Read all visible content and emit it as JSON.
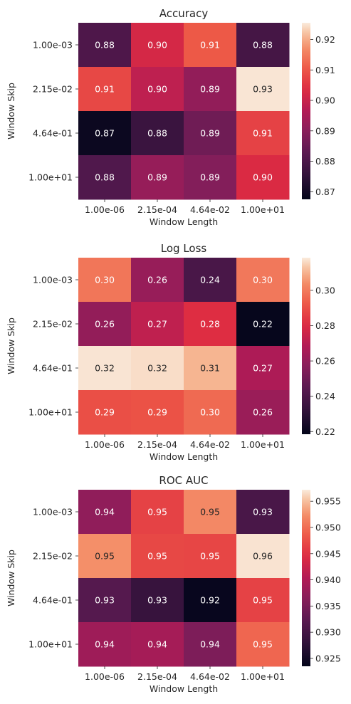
{
  "chart_data": [
    {
      "type": "heatmap",
      "title": "Accuracy",
      "xlabel": "Window Length",
      "ylabel": "Window Skip",
      "x_categories": [
        "1.00e-06",
        "2.15e-04",
        "4.64e-02",
        "1.00e+01"
      ],
      "y_categories": [
        "1.00e-03",
        "2.15e-02",
        "4.64e-01",
        "1.00e+01"
      ],
      "values": [
        [
          0.8805,
          0.902,
          0.9105,
          0.879
        ],
        [
          0.908,
          0.8985,
          0.8915,
          0.925
        ],
        [
          0.869,
          0.877,
          0.886,
          0.907
        ],
        [
          0.881,
          0.892,
          0.889,
          0.903
        ]
      ],
      "annotations": [
        [
          "0.88",
          "0.90",
          "0.91",
          "0.88"
        ],
        [
          "0.91",
          "0.90",
          "0.89",
          "0.93"
        ],
        [
          "0.87",
          "0.88",
          "0.89",
          "0.91"
        ],
        [
          "0.88",
          "0.89",
          "0.89",
          "0.90"
        ]
      ],
      "colorbar": {
        "range": [
          0.8675,
          0.9255
        ],
        "ticks": [
          0.87,
          0.88,
          0.89,
          0.9,
          0.91,
          0.92
        ],
        "tick_labels": [
          "0.87",
          "0.88",
          "0.89",
          "0.90",
          "0.91",
          "0.92"
        ]
      },
      "colormap": "rocket"
    },
    {
      "type": "heatmap",
      "title": "Log Loss",
      "xlabel": "Window Length",
      "ylabel": "Window Skip",
      "x_categories": [
        "1.00e-06",
        "2.15e-04",
        "4.64e-02",
        "1.00e+01"
      ],
      "y_categories": [
        "1.00e-03",
        "2.15e-02",
        "4.64e-01",
        "1.00e+01"
      ],
      "values": [
        [
          0.299,
          0.261,
          0.2395,
          0.2995
        ],
        [
          0.26,
          0.272,
          0.281,
          0.2195
        ],
        [
          0.3175,
          0.3165,
          0.3105,
          0.267
        ],
        [
          0.29,
          0.291,
          0.2965,
          0.262
        ]
      ],
      "annotations": [
        [
          "0.30",
          "0.26",
          "0.24",
          "0.30"
        ],
        [
          "0.26",
          "0.27",
          "0.28",
          "0.22"
        ],
        [
          "0.32",
          "0.32",
          "0.31",
          "0.27"
        ],
        [
          "0.29",
          "0.29",
          "0.30",
          "0.26"
        ]
      ],
      "colorbar": {
        "range": [
          0.2185,
          0.3185
        ],
        "ticks": [
          0.22,
          0.24,
          0.26,
          0.28,
          0.3
        ],
        "tick_labels": [
          "0.22",
          "0.24",
          "0.26",
          "0.28",
          "0.30"
        ]
      },
      "colormap": "rocket"
    },
    {
      "type": "heatmap",
      "title": "ROC AUC",
      "xlabel": "Window Length",
      "ylabel": "Window Skip",
      "x_categories": [
        "1.00e-06",
        "2.15e-04",
        "4.64e-02",
        "1.00e+01"
      ],
      "y_categories": [
        "1.00e-03",
        "2.15e-02",
        "4.64e-01",
        "1.00e+01"
      ],
      "values": [
        [
          0.9372,
          0.9465,
          0.952,
          0.9306
        ],
        [
          0.9525,
          0.947,
          0.9468,
          0.9568
        ],
        [
          0.9318,
          0.9287,
          0.924,
          0.9465
        ],
        [
          0.9385,
          0.9392,
          0.9355,
          0.9495
        ]
      ],
      "annotations": [
        [
          "0.94",
          "0.95",
          "0.95",
          "0.93"
        ],
        [
          "0.95",
          "0.95",
          "0.95",
          "0.96"
        ],
        [
          "0.93",
          "0.93",
          "0.92",
          "0.95"
        ],
        [
          "0.94",
          "0.94",
          "0.94",
          "0.95"
        ]
      ],
      "colorbar": {
        "range": [
          0.9235,
          0.9572
        ],
        "ticks": [
          0.925,
          0.93,
          0.935,
          0.94,
          0.945,
          0.95,
          0.955
        ],
        "tick_labels": [
          "0.925",
          "0.930",
          "0.935",
          "0.940",
          "0.945",
          "0.950",
          "0.955"
        ]
      },
      "colormap": "rocket"
    }
  ]
}
